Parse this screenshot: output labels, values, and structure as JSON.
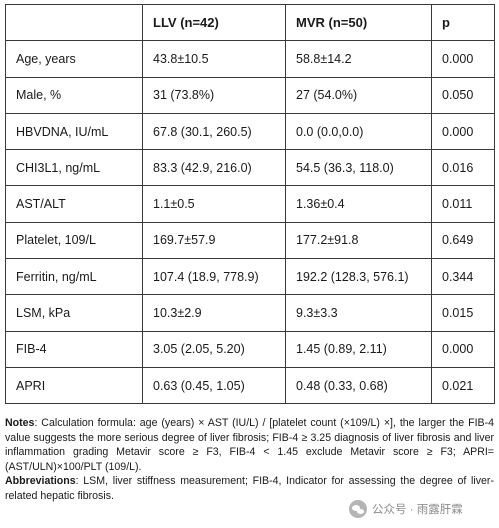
{
  "table": {
    "headers": [
      "",
      "LLV (n=42)",
      "MVR (n=50)",
      "p"
    ],
    "rows": [
      [
        "Age, years",
        "43.8±10.5",
        "58.8±14.2",
        "0.000"
      ],
      [
        "Male, %",
        "31 (73.8%)",
        "27 (54.0%)",
        "0.050"
      ],
      [
        "HBVDNA, IU/mL",
        "67.8 (30.1, 260.5)",
        "0.0 (0.0,0.0)",
        "0.000"
      ],
      [
        "CHI3L1, ng/mL",
        "83.3 (42.9, 216.0)",
        "54.5 (36.3, 118.0)",
        "0.016"
      ],
      [
        "AST/ALT",
        "1.1±0.5",
        "1.36±0.4",
        "0.011"
      ],
      [
        "Platelet, 109/L",
        "169.7±57.9",
        "177.2±91.8",
        "0.649"
      ],
      [
        "Ferritin, ng/mL",
        "107.4 (18.9, 778.9)",
        "192.2 (128.3, 576.1)",
        "0.344"
      ],
      [
        "LSM, kPa",
        "10.3±2.9",
        "9.3±3.3",
        "0.015"
      ],
      [
        "FIB-4",
        "3.05 (2.05, 5.20)",
        "1.45 (0.89, 2.11)",
        "0.000"
      ],
      [
        "APRI",
        "0.63 (0.45, 1.05)",
        "0.48 (0.33, 0.68)",
        "0.021"
      ]
    ]
  },
  "notes": {
    "notes_label": "Notes",
    "notes_text": ": Calculation formula: age (years) × AST (IU/L) / [platelet count (×109/L) ×], the larger the FIB-4 value suggests the more serious degree of liver fibrosis; FIB-4 ≥ 3.25 diagnosis of liver fibrosis and liver inflammation grading Metavir score ≥ F3, FIB-4 < 1.45 exclude Metavir score ≥ F3; APRI=(AST/ULN)×100/PLT (109/L).",
    "abbrev_label": "Abbreviations",
    "abbrev_text": ": LSM, liver stiffness measurement; FIB-4, Indicator for assessing the degree of liver-related hepatic fibrosis."
  },
  "watermark": {
    "icon": "wechat-icon",
    "text": "公众号 · 雨露肝霖"
  }
}
